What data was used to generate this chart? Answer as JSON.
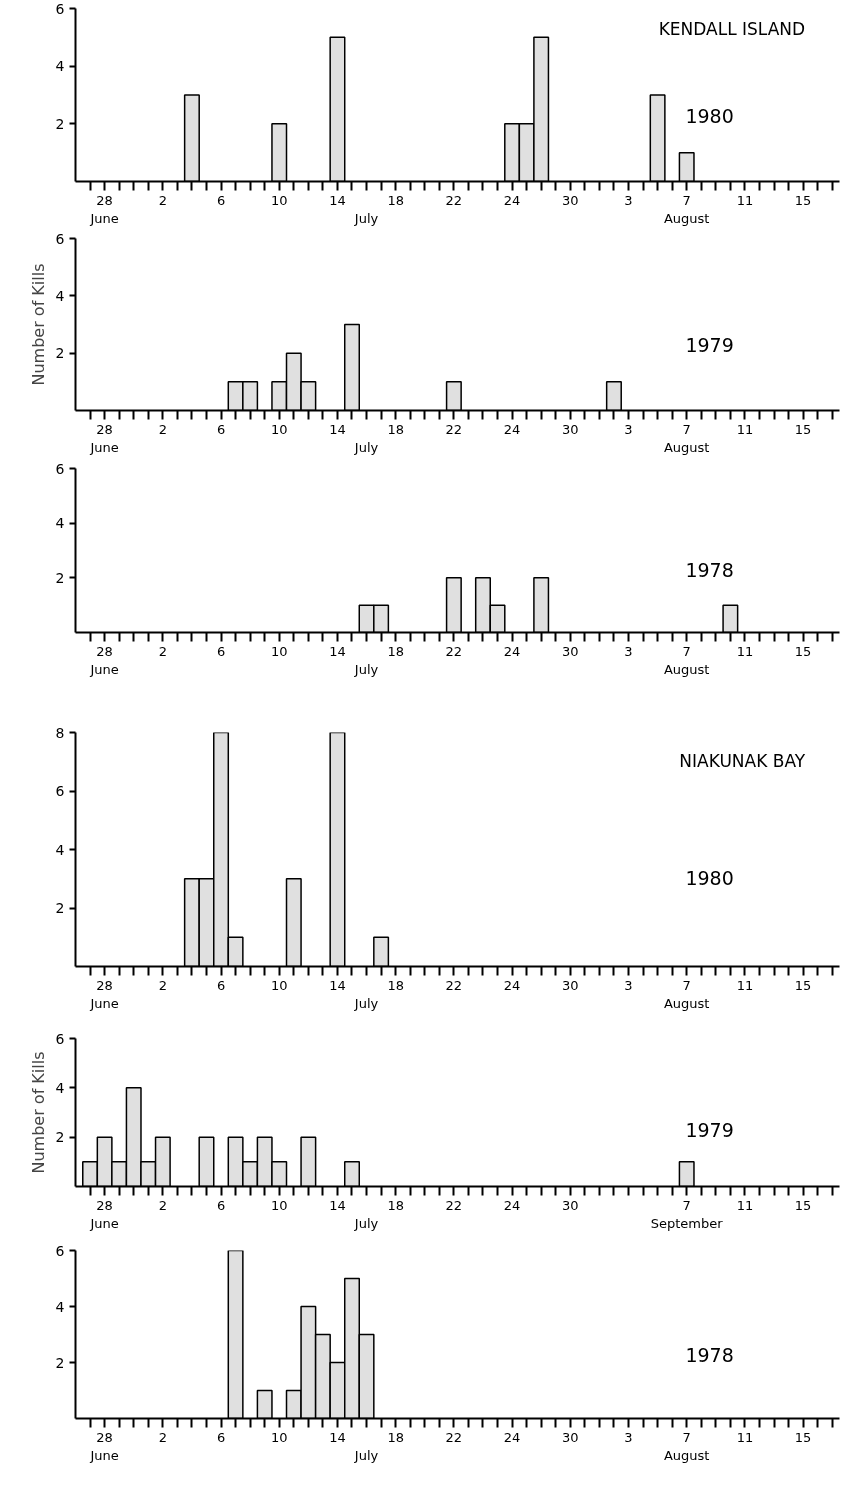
{
  "chart_data": [
    {
      "type": "bar",
      "title": "KENDALL ISLAND",
      "subtitle": "1980",
      "color": "#e0e0e0",
      "ylim": [
        0,
        6
      ],
      "yticks": [
        2,
        4,
        6
      ],
      "categories": [
        null,
        "28\nJune",
        null,
        null,
        null,
        "2",
        null,
        null,
        null,
        "6",
        null,
        null,
        null,
        "10",
        null,
        null,
        null,
        "14",
        null,
        "\nJuly",
        null,
        "18",
        null,
        null,
        null,
        "22",
        null,
        null,
        null,
        "24",
        null,
        null,
        null,
        "30",
        null,
        null,
        null,
        "3",
        null,
        null,
        null,
        "7\nAugust",
        null,
        null,
        null,
        "11",
        null,
        null,
        null,
        "15",
        null,
        null
      ],
      "values": [
        0,
        0,
        0,
        0,
        0,
        0,
        0,
        3,
        0,
        0,
        0,
        0,
        0,
        2,
        0,
        0,
        0,
        5,
        0,
        0,
        0,
        0,
        0,
        0,
        0,
        0,
        0,
        0,
        0,
        2,
        2,
        5,
        0,
        0,
        0,
        0,
        0,
        0,
        0,
        3,
        0,
        1,
        0,
        0,
        0,
        0,
        0,
        0,
        0,
        0,
        0,
        0
      ]
    },
    {
      "type": "bar",
      "subtitle": "1979",
      "ylabel": "Number of Kills",
      "color": "#e0e0e0",
      "ylim": [
        0,
        6
      ],
      "yticks": [
        2,
        4,
        6
      ],
      "categories": [
        null,
        "28\nJune",
        null,
        null,
        null,
        "2",
        null,
        null,
        null,
        "6",
        null,
        null,
        null,
        "10",
        null,
        null,
        null,
        "14",
        null,
        "\nJuly",
        null,
        "18",
        null,
        null,
        null,
        "22",
        null,
        null,
        null,
        "24",
        null,
        null,
        null,
        "30",
        null,
        null,
        null,
        "3",
        null,
        null,
        null,
        "7\nAugust",
        null,
        null,
        null,
        "11",
        null,
        null,
        null,
        "15",
        null,
        null
      ],
      "values": [
        0,
        0,
        0,
        0,
        0,
        0,
        0,
        0,
        0,
        0,
        1,
        1,
        0,
        1,
        2,
        1,
        0,
        0,
        3,
        0,
        0,
        0,
        0,
        0,
        0,
        1,
        0,
        0,
        0,
        0,
        0,
        0,
        0,
        0,
        0,
        0,
        1,
        0,
        0,
        0,
        0,
        0,
        0,
        0,
        0,
        0,
        0,
        0,
        0,
        0,
        0,
        0
      ]
    },
    {
      "type": "bar",
      "subtitle": "1978",
      "color": "#e0e0e0",
      "ylim": [
        0,
        6
      ],
      "yticks": [
        2,
        4,
        6
      ],
      "categories": [
        null,
        "28\nJune",
        null,
        null,
        null,
        "2",
        null,
        null,
        null,
        "6",
        null,
        null,
        null,
        "10",
        null,
        null,
        null,
        "14",
        null,
        "\nJuly",
        null,
        "18",
        null,
        null,
        null,
        "22",
        null,
        null,
        null,
        "24",
        null,
        null,
        null,
        "30",
        null,
        null,
        null,
        "3",
        null,
        null,
        null,
        "7\nAugust",
        null,
        null,
        null,
        "11",
        null,
        null,
        null,
        "15",
        null,
        null
      ],
      "values": [
        0,
        0,
        0,
        0,
        0,
        0,
        0,
        0,
        0,
        0,
        0,
        0,
        0,
        0,
        0,
        0,
        0,
        0,
        0,
        1,
        1,
        0,
        0,
        0,
        0,
        2,
        0,
        2,
        1,
        0,
        0,
        2,
        0,
        0,
        0,
        0,
        0,
        0,
        0,
        0,
        0,
        0,
        0,
        0,
        1,
        0,
        0,
        0,
        0,
        0,
        0,
        0
      ]
    },
    {
      "type": "bar",
      "title": "NIAKUNAK BAY",
      "subtitle": "1980",
      "color": "#e0e0e0",
      "ylim": [
        0,
        8
      ],
      "yticks": [
        2,
        4,
        6,
        8
      ],
      "categories": [
        null,
        "28\nJune",
        null,
        null,
        null,
        "2",
        null,
        null,
        null,
        "6",
        null,
        null,
        null,
        "10",
        null,
        null,
        null,
        "14",
        null,
        "\nJuly",
        null,
        "18",
        null,
        null,
        null,
        "22",
        null,
        null,
        null,
        "24",
        null,
        null,
        null,
        "30",
        null,
        null,
        null,
        "3",
        null,
        null,
        null,
        "7\nAugust",
        null,
        null,
        null,
        "11",
        null,
        null,
        null,
        "15",
        null,
        null
      ],
      "values": [
        0,
        0,
        0,
        0,
        0,
        0,
        0,
        3,
        3,
        8,
        1,
        0,
        0,
        0,
        3,
        0,
        0,
        8,
        0,
        0,
        1,
        0,
        0,
        0,
        0,
        0,
        0,
        0,
        0,
        0,
        0,
        0,
        0,
        0,
        0,
        0,
        0,
        0,
        0,
        0,
        0,
        0,
        0,
        0,
        0,
        0,
        0,
        0,
        0,
        0,
        0,
        0
      ]
    },
    {
      "type": "bar",
      "subtitle": "1979",
      "ylabel": "Number of Kills",
      "color": "#e0e0e0",
      "ylim": [
        0,
        6
      ],
      "yticks": [
        2,
        4,
        6
      ],
      "categories": [
        null,
        "28\nJune",
        null,
        null,
        null,
        "2",
        null,
        null,
        null,
        "6",
        null,
        null,
        null,
        "10",
        null,
        null,
        null,
        "14",
        null,
        "\nJuly",
        null,
        "18",
        null,
        null,
        null,
        "22",
        null,
        null,
        null,
        "24",
        null,
        null,
        null,
        "30",
        null,
        null,
        null,
        null,
        null,
        null,
        null,
        "7\nSeptember",
        null,
        null,
        null,
        "11",
        null,
        null,
        null,
        "15",
        null,
        null
      ],
      "values": [
        1,
        2,
        1,
        4,
        1,
        2,
        0,
        0,
        2,
        0,
        2,
        1,
        2,
        1,
        0,
        2,
        0,
        0,
        1,
        0,
        0,
        0,
        0,
        0,
        0,
        0,
        0,
        0,
        0,
        0,
        0,
        0,
        0,
        0,
        0,
        0,
        0,
        0,
        0,
        0,
        0,
        1,
        0,
        0,
        0,
        0,
        0,
        0,
        0,
        0,
        0,
        0
      ]
    },
    {
      "type": "bar",
      "subtitle": "1978",
      "color": "#e0e0e0",
      "ylim": [
        0,
        6
      ],
      "yticks": [
        2,
        4,
        6
      ],
      "categories": [
        null,
        "28\nJune",
        null,
        null,
        null,
        "2",
        null,
        null,
        null,
        "6",
        null,
        null,
        null,
        "10",
        null,
        null,
        null,
        "14",
        null,
        "\nJuly",
        null,
        "18",
        null,
        null,
        null,
        "22",
        null,
        null,
        null,
        "24",
        null,
        null,
        null,
        "30",
        null,
        null,
        null,
        "3",
        null,
        null,
        null,
        "7\nAugust",
        null,
        null,
        null,
        "11",
        null,
        null,
        null,
        "15",
        null,
        null
      ],
      "values": [
        0,
        0,
        0,
        0,
        0,
        0,
        0,
        0,
        0,
        0,
        6,
        0,
        1,
        0,
        1,
        4,
        3,
        2,
        5,
        3,
        0,
        0,
        0,
        0,
        0,
        0,
        0,
        0,
        0,
        0,
        0,
        0,
        0,
        0,
        0,
        0,
        0,
        0,
        0,
        0,
        0,
        0,
        0,
        0,
        0,
        0,
        0,
        0,
        0,
        0,
        0,
        0
      ]
    }
  ]
}
